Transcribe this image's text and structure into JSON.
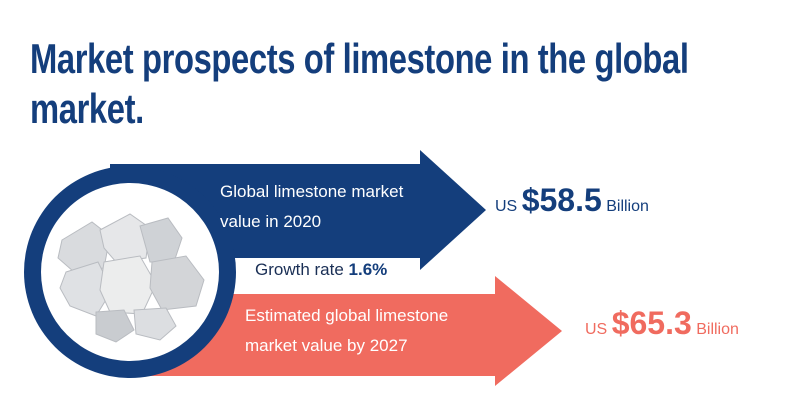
{
  "title": "Market prospects of limestone in the global market.",
  "current": {
    "label_lines": [
      "Global limestone market",
      "value in 2020"
    ],
    "prefix": "US",
    "amount": "$58.5",
    "unit": "Billion"
  },
  "growth": {
    "label": "Growth rate",
    "value": "1.6%"
  },
  "forecast": {
    "label_lines": [
      "Estimated global limestone",
      "market value by 2027"
    ],
    "prefix": "US",
    "amount": "$65.3",
    "unit": "Billion"
  }
}
